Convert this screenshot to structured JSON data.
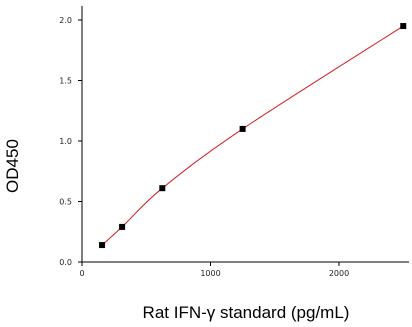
{
  "chart_data": {
    "type": "scatter",
    "title": "",
    "xlabel": "Rat IFN-γ  standard (pg/mL)",
    "ylabel": "OD450",
    "xlim": [
      0,
      2500
    ],
    "ylim": [
      0,
      2.1
    ],
    "x_ticks": [
      0,
      1000,
      2000
    ],
    "y_ticks": [
      0.0,
      0.5,
      1.0,
      1.5,
      2.0
    ],
    "x_tick_labels": [
      "0",
      "1000",
      "2000"
    ],
    "y_tick_labels": [
      "0.0",
      "0.5",
      "1.0",
      "1.5",
      "2.0"
    ],
    "grid": false,
    "series": [
      {
        "x": [
          156,
          312,
          625,
          1250,
          2500
        ],
        "y": [
          0.14,
          0.29,
          0.61,
          1.1,
          1.95
        ],
        "marker": "square",
        "marker_color": "#000000",
        "fit_line": true,
        "fit_color": "#d62020"
      }
    ]
  }
}
